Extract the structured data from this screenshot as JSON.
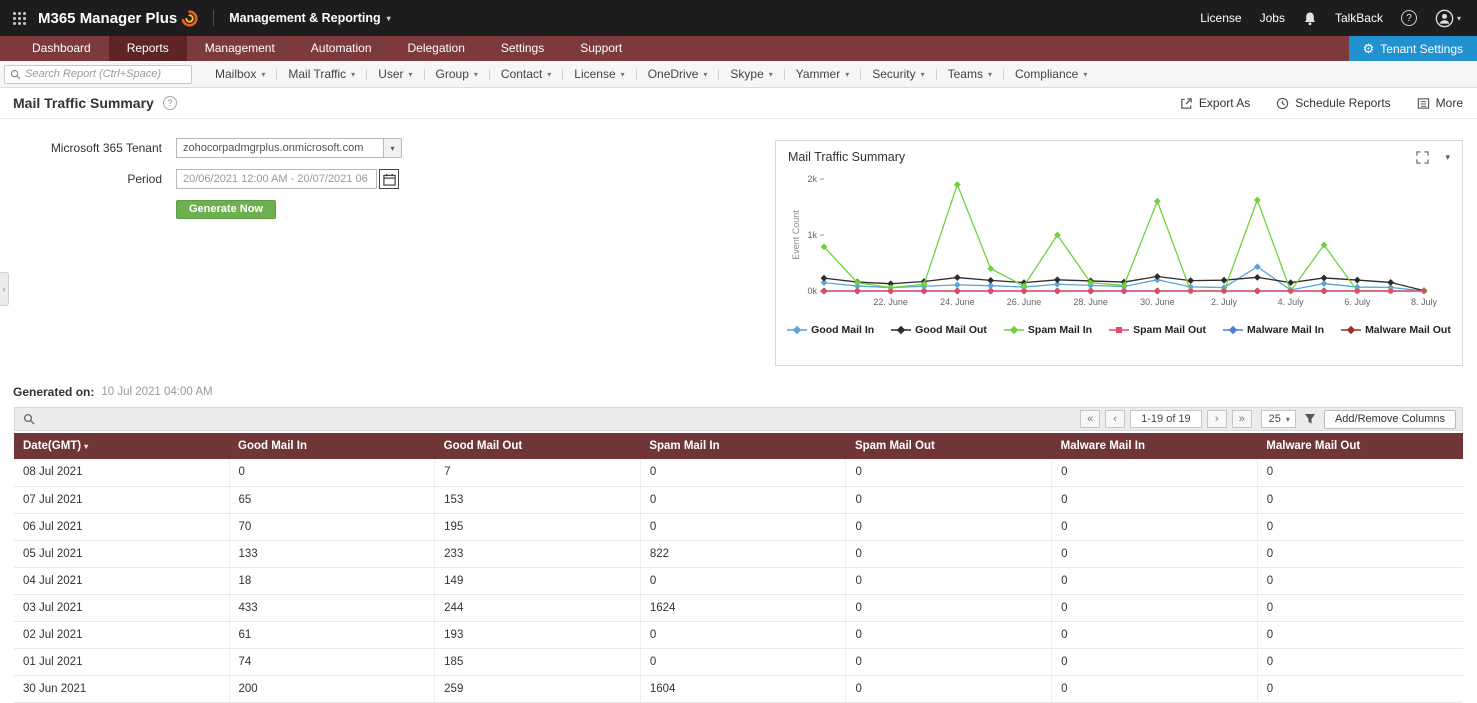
{
  "topbar": {
    "app_name": "M365 Manager Plus",
    "module": "Management & Reporting",
    "license": "License",
    "jobs": "Jobs",
    "talkback": "TalkBack"
  },
  "nav": {
    "tabs": [
      {
        "label": "Dashboard",
        "active": false
      },
      {
        "label": "Reports",
        "active": true
      },
      {
        "label": "Management",
        "active": false
      },
      {
        "label": "Automation",
        "active": false
      },
      {
        "label": "Delegation",
        "active": false
      },
      {
        "label": "Settings",
        "active": false
      },
      {
        "label": "Support",
        "active": false
      }
    ],
    "tenant_settings": "Tenant Settings"
  },
  "reportbar": {
    "search_placeholder": "Search Report (Ctrl+Space)",
    "menus": [
      "Mailbox",
      "Mail Traffic",
      "User",
      "Group",
      "Contact",
      "License",
      "OneDrive",
      "Skype",
      "Yammer",
      "Security",
      "Teams",
      "Compliance"
    ]
  },
  "page": {
    "title": "Mail Traffic Summary",
    "export_label": "Export As",
    "schedule_label": "Schedule Reports",
    "more_label": "More"
  },
  "form": {
    "tenant_label": "Microsoft 365 Tenant",
    "tenant_value": "zohocorpadmgrplus.onmicrosoft.com",
    "period_label": "Period",
    "period_value": "20/06/2021 12:00 AM - 20/07/2021 06",
    "generate_label": "Generate Now"
  },
  "chart_panel": {
    "title": "Mail Traffic Summary"
  },
  "chart_data": {
    "type": "line",
    "title": "Mail Traffic Summary",
    "ylabel": "Event Count",
    "ylim": [
      0,
      2000
    ],
    "yticks": [
      {
        "value": 0,
        "label": "0k"
      },
      {
        "value": 1000,
        "label": "1k"
      },
      {
        "value": 2000,
        "label": "2k"
      }
    ],
    "x": [
      "20 Jun",
      "21 Jun",
      "22 Jun",
      "23 Jun",
      "24 Jun",
      "25 Jun",
      "26 Jun",
      "27 Jun",
      "28 Jun",
      "29 Jun",
      "30 Jun",
      "01 Jul",
      "02 Jul",
      "03 Jul",
      "04 Jul",
      "05 Jul",
      "06 Jul",
      "07 Jul",
      "08 Jul"
    ],
    "xticks": [
      {
        "index": 2,
        "label": "22. June"
      },
      {
        "index": 4,
        "label": "24. June"
      },
      {
        "index": 6,
        "label": "26. June"
      },
      {
        "index": 8,
        "label": "28. June"
      },
      {
        "index": 10,
        "label": "30. June"
      },
      {
        "index": 12,
        "label": "2. July"
      },
      {
        "index": 14,
        "label": "4. July"
      },
      {
        "index": 16,
        "label": "6. July"
      },
      {
        "index": 18,
        "label": "8. July"
      }
    ],
    "legend_position": "bottom",
    "grid": false,
    "series": [
      {
        "name": "Good Mail In",
        "color": "#5ba3d9",
        "marker": "diamond",
        "values": [
          150,
          90,
          60,
          85,
          110,
          95,
          70,
          120,
          100,
          80,
          200,
          74,
          61,
          433,
          18,
          133,
          70,
          65,
          0
        ]
      },
      {
        "name": "Good Mail Out",
        "color": "#2b2b2b",
        "marker": "diamond",
        "values": [
          230,
          160,
          130,
          170,
          240,
          190,
          150,
          200,
          180,
          160,
          259,
          185,
          193,
          244,
          149,
          233,
          195,
          153,
          7
        ]
      },
      {
        "name": "Spam Mail In",
        "color": "#6fd13e",
        "marker": "diamond",
        "values": [
          790,
          150,
          60,
          120,
          1900,
          400,
          90,
          1000,
          150,
          100,
          1604,
          0,
          0,
          1624,
          0,
          822,
          0,
          0,
          0
        ]
      },
      {
        "name": "Spam Mail Out",
        "color": "#e8476b",
        "marker": "square",
        "values": [
          0,
          0,
          0,
          0,
          0,
          0,
          0,
          0,
          0,
          0,
          0,
          0,
          0,
          0,
          0,
          0,
          0,
          0,
          0
        ]
      },
      {
        "name": "Malware Mail In",
        "color": "#4a7fd4",
        "marker": "diamond",
        "values": [
          0,
          0,
          0,
          0,
          0,
          0,
          0,
          0,
          0,
          0,
          0,
          0,
          0,
          0,
          0,
          0,
          0,
          0,
          0
        ]
      },
      {
        "name": "Malware Mail Out",
        "color": "#9e2f23",
        "marker": "diamond",
        "values": [
          0,
          0,
          0,
          0,
          0,
          0,
          0,
          0,
          0,
          0,
          0,
          0,
          0,
          0,
          0,
          0,
          0,
          0,
          0
        ]
      }
    ]
  },
  "generated": {
    "label": "Generated on:",
    "value": "10 Jul 2021 04:00 AM"
  },
  "table": {
    "pagination": {
      "first": "«",
      "prev": "‹",
      "range": "1-19 of 19",
      "next": "›",
      "last": "»"
    },
    "page_size": "25",
    "add_remove_label": "Add/Remove Columns",
    "columns": [
      "Date(GMT)",
      "Good Mail In",
      "Good Mail Out",
      "Spam Mail In",
      "Spam Mail Out",
      "Malware Mail In",
      "Malware Mail Out"
    ],
    "rows": [
      [
        "08 Jul 2021",
        "0",
        "7",
        "0",
        "0",
        "0",
        "0"
      ],
      [
        "07 Jul 2021",
        "65",
        "153",
        "0",
        "0",
        "0",
        "0"
      ],
      [
        "06 Jul 2021",
        "70",
        "195",
        "0",
        "0",
        "0",
        "0"
      ],
      [
        "05 Jul 2021",
        "133",
        "233",
        "822",
        "0",
        "0",
        "0"
      ],
      [
        "04 Jul 2021",
        "18",
        "149",
        "0",
        "0",
        "0",
        "0"
      ],
      [
        "03 Jul 2021",
        "433",
        "244",
        "1624",
        "0",
        "0",
        "0"
      ],
      [
        "02 Jul 2021",
        "61",
        "193",
        "0",
        "0",
        "0",
        "0"
      ],
      [
        "01 Jul 2021",
        "74",
        "185",
        "0",
        "0",
        "0",
        "0"
      ],
      [
        "30 Jun 2021",
        "200",
        "259",
        "1604",
        "0",
        "0",
        "0"
      ]
    ]
  },
  "colors": {
    "topbar_bg": "#1d1d1d",
    "nav_bg": "#7c3a3c",
    "nav_active_bg": "#5f2526",
    "tenant_settings_bg": "#2191d0",
    "table_header_bg": "#703637",
    "generate_bg": "#6cb04f"
  }
}
